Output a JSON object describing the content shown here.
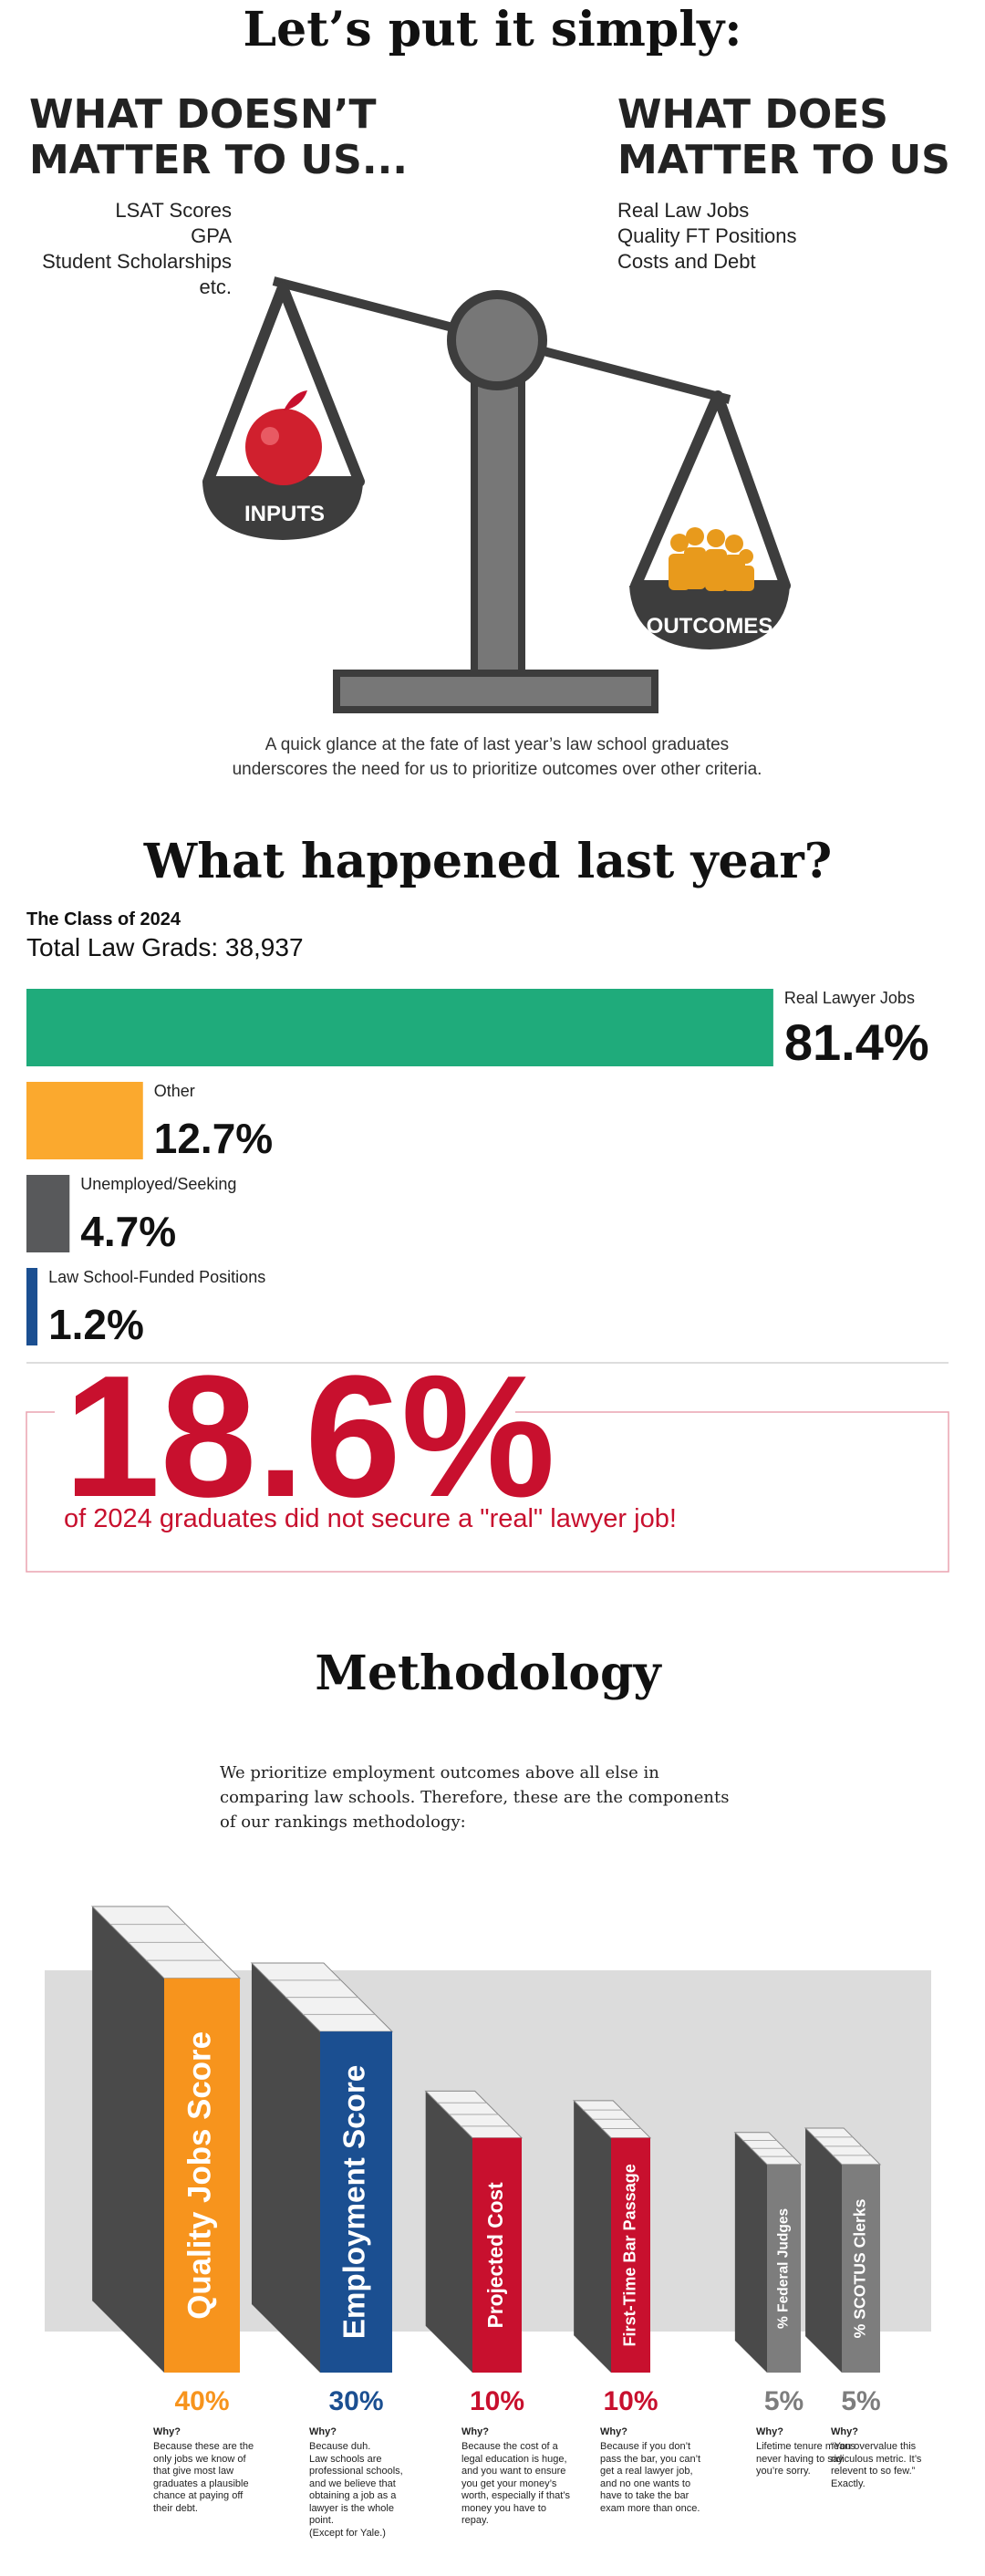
{
  "header": {
    "title": "Let’s put it simply:"
  },
  "doesnt_matter": {
    "heading": [
      "WHAT DOESN’T",
      "MATTER TO US..."
    ],
    "items": [
      "LSAT Scores",
      "GPA",
      "Student Scholarships",
      "etc."
    ]
  },
  "does_matter": {
    "heading": [
      "WHAT DOES",
      "MATTER TO US"
    ],
    "items": [
      "Real Law Jobs",
      "Quality FT Positions",
      "Costs and Debt"
    ]
  },
  "scale": {
    "left_label": "INPUTS",
    "right_label": "OUTCOMES"
  },
  "caption": [
    "A quick glance at the fate of last year’s law school graduates",
    "underscores the need for us to prioritize outcomes over other criteria."
  ],
  "last_year": {
    "title": "What happened last year?",
    "class": "The Class of 2024",
    "total": "Total Law Grads: 38,937",
    "categories": [
      "Real Lawyer Jobs",
      "Other",
      "Unemployed/Seeking",
      "Law School-Funded Positions"
    ],
    "values": [
      81.4,
      12.7,
      4.7,
      1.2
    ],
    "value_labels": [
      "81.4%",
      "12.7%",
      "4.7%",
      "1.2%"
    ],
    "colors": [
      "#1fab7b",
      "#fba92e",
      "#58595b",
      "#1b4f91"
    ]
  },
  "highlight": {
    "figure": "18.6%",
    "text": "of 2024 graduates did not secure a \"real\" lawyer job!"
  },
  "methodology": {
    "title": "Methodology",
    "intro": "We prioritize employment outcomes above all else in comparing law schools. Therefore, these are the components of our rankings methodology:",
    "components": [
      {
        "name": "Quality Jobs Score",
        "color": "#f7941d",
        "value": 40,
        "value_label": "40%",
        "why": "Why?",
        "reason": "Because these are the only jobs we know of that give most law graduates a plausible chance at paying off their debt."
      },
      {
        "name": "Employment Score",
        "color": "#1b4f91",
        "value": 30,
        "value_label": "30%",
        "why": "Why?",
        "reason": "Because duh.\nLaw schools are professional schools, and we believe that obtaining a job as a lawyer is the whole point.\n(Except for Yale.)"
      },
      {
        "name": "Projected Cost",
        "color": "#c8102e",
        "value": 10,
        "value_label": "10%",
        "why": "Why?",
        "reason": "Because the cost of a legal education is huge, and you want to ensure you get your money’s worth, especially if that’s money you have to repay."
      },
      {
        "name": "First-Time Bar Passage",
        "color": "#c8102e",
        "value": 10,
        "value_label": "10%",
        "why": "Why?",
        "reason": "Because if you don’t pass the bar, you can’t get a real lawyer job, and no one wants to have to take the bar exam more than once."
      },
      {
        "name": "% Federal Judges",
        "color": "#7d7d7d",
        "value": 5,
        "value_label": "5%",
        "why": "Why?",
        "reason": "Lifetime tenure means never having to say you’re sorry."
      },
      {
        "name": "% SCOTUS Clerks",
        "color": "#7d7d7d",
        "value": 5,
        "value_label": "5%",
        "why": "Why?",
        "reason": "“You overvalue this ridiculous metric. It’s relevent to so few.” Exactly."
      }
    ]
  }
}
